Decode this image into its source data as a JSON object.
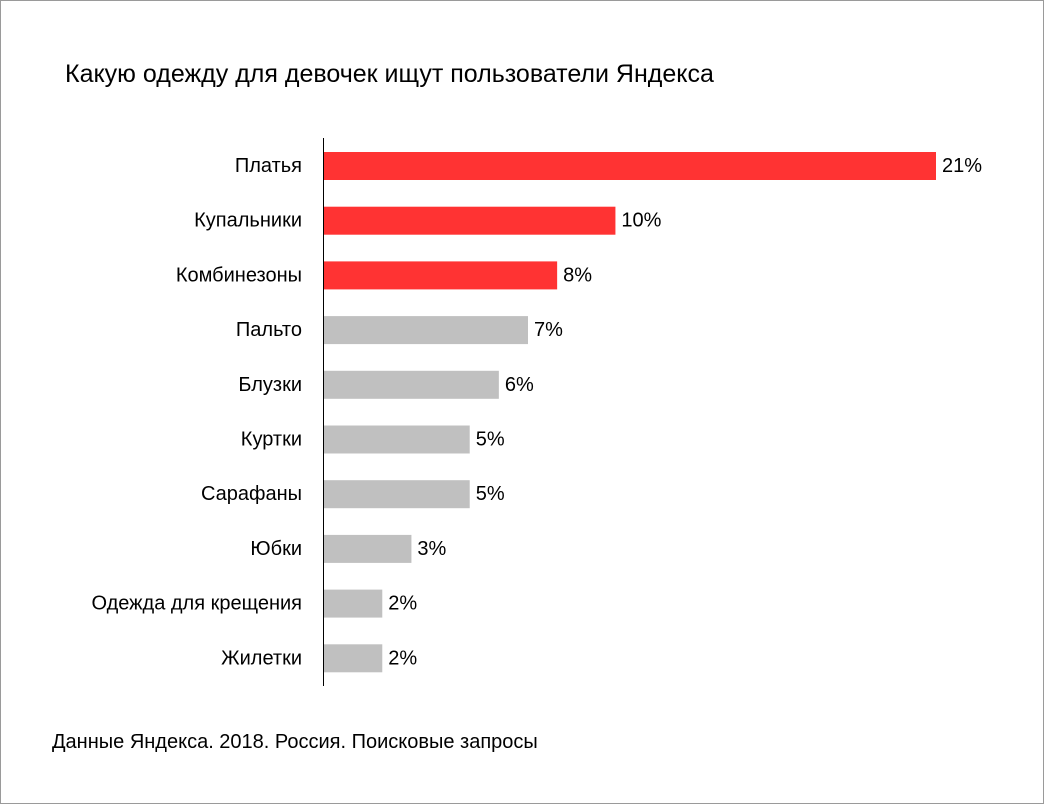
{
  "title": "Какую одежду для девочек ищут пользователи Яндекса",
  "source": "Данные Яндекса. 2018. Россия. Поисковые запросы",
  "colors": {
    "highlight": "#ff3333",
    "default": "#c0c0c0",
    "axis": "#000000"
  },
  "chart_data": {
    "type": "bar",
    "orientation": "horizontal",
    "title": "Какую одежду для девочек ищут пользователи Яндекса",
    "categories": [
      "Платья",
      "Купальники",
      "Комбинезоны",
      "Пальто",
      "Блузки",
      "Куртки",
      "Сарафаны",
      "Юбки",
      "Одежда для крещения",
      "Жилетки"
    ],
    "values": [
      21,
      10,
      8,
      7,
      6,
      5,
      5,
      3,
      2,
      2
    ],
    "value_labels": [
      "21%",
      "10%",
      "8%",
      "7%",
      "6%",
      "5%",
      "5%",
      "3%",
      "2%",
      "2%"
    ],
    "highlighted": [
      true,
      true,
      true,
      false,
      false,
      false,
      false,
      false,
      false,
      false
    ],
    "unit": "%",
    "xlabel": "",
    "ylabel": "",
    "xlim": [
      0,
      21
    ],
    "grid": false,
    "legend": "none"
  }
}
